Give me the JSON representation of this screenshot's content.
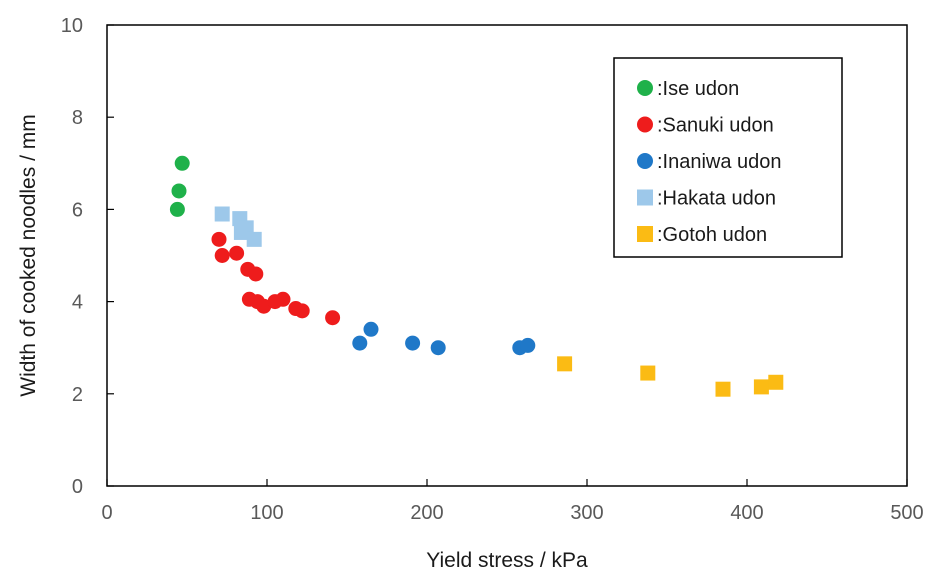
{
  "chart_data": {
    "type": "scatter",
    "xlabel": "Yield stress / kPa",
    "ylabel": "Width of cooked noodles / mm",
    "xlim": [
      0,
      500
    ],
    "ylim": [
      0,
      10
    ],
    "xticks": [
      "0",
      "100",
      "200",
      "300",
      "400",
      "500"
    ],
    "yticks": [
      "0",
      "2",
      "4",
      "6",
      "8",
      "10"
    ],
    "grid": false,
    "legend_position": "top-right",
    "series": [
      {
        "name": ":Ise udon",
        "marker": "circle",
        "color": "#1fb14a",
        "points": [
          [
            44,
            6.0
          ],
          [
            45,
            6.4
          ],
          [
            47,
            7.0
          ]
        ]
      },
      {
        "name": ":Sanuki udon",
        "marker": "circle",
        "color": "#ee1c1c",
        "points": [
          [
            70,
            5.35
          ],
          [
            72,
            5.0
          ],
          [
            81,
            5.05
          ],
          [
            88,
            4.7
          ],
          [
            93,
            4.6
          ],
          [
            89,
            4.05
          ],
          [
            94,
            4.0
          ],
          [
            98,
            3.9
          ],
          [
            105,
            4.0
          ],
          [
            110,
            4.05
          ],
          [
            118,
            3.85
          ],
          [
            122,
            3.8
          ],
          [
            141,
            3.65
          ]
        ]
      },
      {
        "name": ":Inaniwa udon",
        "marker": "circle",
        "color": "#1f78c8",
        "points": [
          [
            158,
            3.1
          ],
          [
            165,
            3.4
          ],
          [
            191,
            3.1
          ],
          [
            207,
            3.0
          ],
          [
            258,
            3.0
          ],
          [
            263,
            3.05
          ]
        ]
      },
      {
        "name": ":Hakata udon",
        "marker": "square",
        "color": "#9dc8ea",
        "points": [
          [
            72,
            5.9
          ],
          [
            83,
            5.8
          ],
          [
            87,
            5.6
          ],
          [
            84,
            5.5
          ],
          [
            92,
            5.35
          ]
        ]
      },
      {
        "name": ":Gotoh udon",
        "marker": "square",
        "color": "#fbbb14",
        "points": [
          [
            286,
            2.65
          ],
          [
            338,
            2.45
          ],
          [
            385,
            2.1
          ],
          [
            409,
            2.15
          ],
          [
            418,
            2.25
          ]
        ]
      }
    ]
  }
}
